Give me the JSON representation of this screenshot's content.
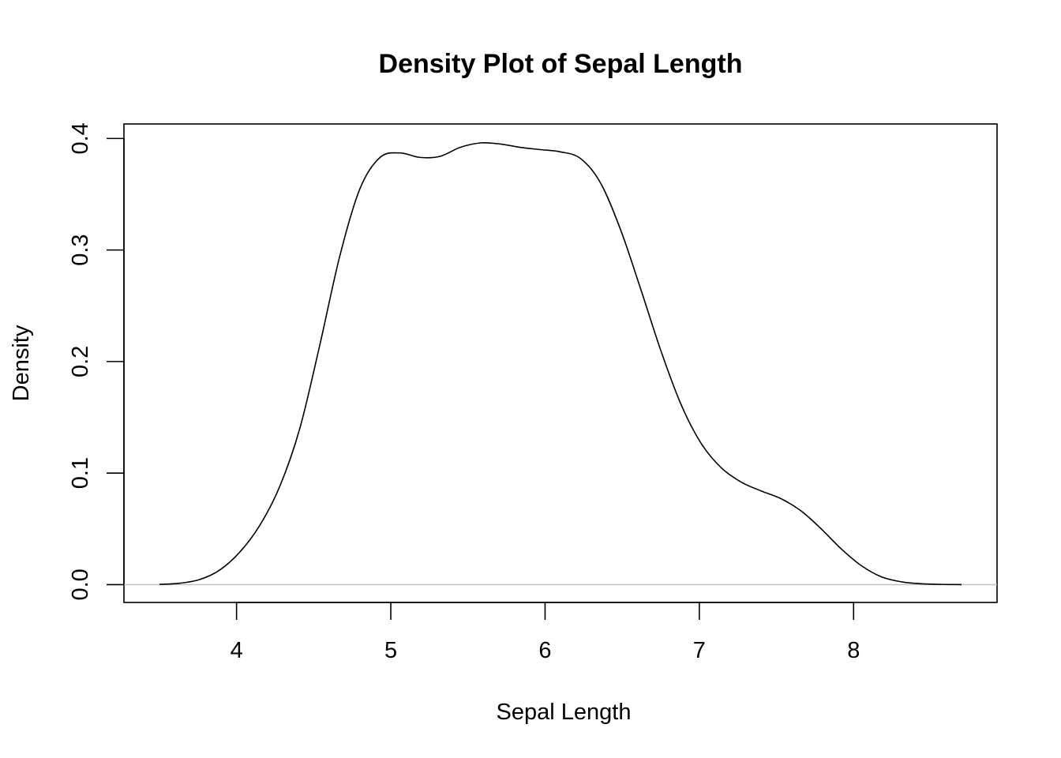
{
  "chart_data": {
    "type": "line",
    "title": "Density Plot of Sepal Length",
    "xlabel": "Sepal Length",
    "ylabel": "Density",
    "xlim": [
      3.27,
      8.93
    ],
    "ylim": [
      -0.016,
      0.413
    ],
    "x_ticks": [
      4,
      5,
      6,
      7,
      8
    ],
    "x_tick_labels": [
      "4",
      "5",
      "6",
      "7",
      "8"
    ],
    "y_ticks": [
      0.0,
      0.1,
      0.2,
      0.3,
      0.4
    ],
    "y_tick_labels": [
      "0.0",
      "0.1",
      "0.2",
      "0.3",
      "0.4"
    ],
    "grid": false,
    "baseline": 0,
    "series": [
      {
        "line_color": "#000000",
        "x": [
          3.5,
          3.63,
          3.76,
          3.89,
          4.02,
          4.15,
          4.28,
          4.41,
          4.54,
          4.67,
          4.8,
          4.93,
          5.06,
          5.19,
          5.32,
          5.45,
          5.58,
          5.71,
          5.84,
          5.97,
          6.1,
          6.23,
          6.36,
          6.49,
          6.62,
          6.75,
          6.88,
          7.01,
          7.14,
          7.27,
          7.4,
          7.53,
          7.66,
          7.79,
          7.92,
          8.05,
          8.18,
          8.31,
          8.44,
          8.57,
          8.7
        ],
        "values": [
          0.0002,
          0.0012,
          0.0045,
          0.013,
          0.029,
          0.053,
          0.088,
          0.14,
          0.215,
          0.295,
          0.355,
          0.383,
          0.387,
          0.383,
          0.384,
          0.392,
          0.396,
          0.395,
          0.392,
          0.39,
          0.388,
          0.382,
          0.36,
          0.318,
          0.265,
          0.21,
          0.162,
          0.127,
          0.105,
          0.092,
          0.084,
          0.077,
          0.066,
          0.05,
          0.032,
          0.017,
          0.007,
          0.0025,
          0.0008,
          0.0002,
          0.0
        ]
      }
    ]
  }
}
